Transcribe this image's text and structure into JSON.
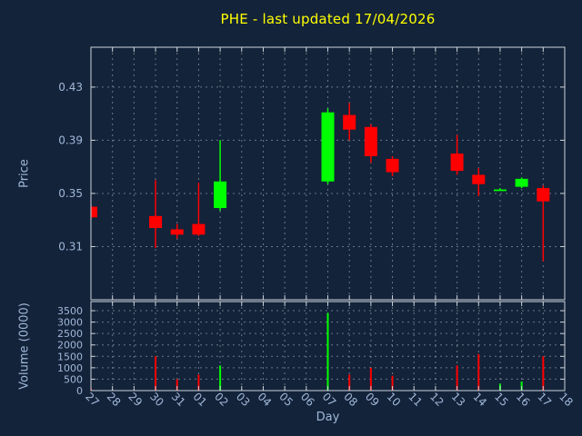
{
  "chart_data": {
    "type": "candlestick",
    "title": "PHE - last updated 17/04/2026",
    "xlabel": "Day",
    "x_categories": [
      "27",
      "28",
      "29",
      "30",
      "31",
      "01",
      "02",
      "03",
      "04",
      "05",
      "06",
      "07",
      "08",
      "09",
      "10",
      "11",
      "12",
      "13",
      "14",
      "15",
      "16",
      "17",
      "18"
    ],
    "grid": true,
    "legend": "none",
    "price_panel": {
      "ylabel": "Price",
      "ylim": [
        0.27,
        0.46
      ],
      "yticks": [
        0.31,
        0.35,
        0.39,
        0.43
      ]
    },
    "volume_panel": {
      "ylabel": "Volume (0000)",
      "ylim": [
        0,
        3900
      ],
      "yticks": [
        0,
        500,
        1000,
        1500,
        2000,
        2500,
        3000,
        3500
      ]
    },
    "colors": {
      "background": "#13233a",
      "up": "#00ff00",
      "down": "#ff0000",
      "title": "#ffff00",
      "axis_text": "#a0b8d8",
      "border": "#ccd4dc",
      "grid": "#ffffff"
    },
    "candles": [
      {
        "day": "27",
        "open": 0.34,
        "high": 0.341,
        "low": 0.331,
        "close": 0.332,
        "volume": 100
      },
      {
        "day": "30",
        "open": 0.333,
        "high": 0.36,
        "low": 0.309,
        "close": 0.324,
        "volume": 1500
      },
      {
        "day": "31",
        "open": 0.323,
        "high": 0.327,
        "low": 0.316,
        "close": 0.319,
        "volume": 500
      },
      {
        "day": "01",
        "open": 0.327,
        "high": 0.358,
        "low": 0.318,
        "close": 0.319,
        "volume": 700
      },
      {
        "day": "02",
        "open": 0.339,
        "high": 0.39,
        "low": 0.337,
        "close": 0.359,
        "volume": 1100
      },
      {
        "day": "07",
        "open": 0.359,
        "high": 0.414,
        "low": 0.357,
        "close": 0.411,
        "volume": 3400
      },
      {
        "day": "08",
        "open": 0.409,
        "high": 0.418,
        "low": 0.39,
        "close": 0.398,
        "volume": 700
      },
      {
        "day": "09",
        "open": 0.4,
        "high": 0.402,
        "low": 0.373,
        "close": 0.378,
        "volume": 1000
      },
      {
        "day": "10",
        "open": 0.376,
        "high": 0.378,
        "low": 0.363,
        "close": 0.366,
        "volume": 650
      },
      {
        "day": "13",
        "open": 0.38,
        "high": 0.394,
        "low": 0.364,
        "close": 0.367,
        "volume": 1100
      },
      {
        "day": "14",
        "open": 0.364,
        "high": 0.369,
        "low": 0.348,
        "close": 0.357,
        "volume": 1600
      },
      {
        "day": "15",
        "open": 0.353,
        "high": 0.354,
        "low": 0.352,
        "close": 0.353,
        "volume": 300
      },
      {
        "day": "16",
        "open": 0.355,
        "high": 0.362,
        "low": 0.354,
        "close": 0.361,
        "volume": 400
      },
      {
        "day": "17",
        "open": 0.354,
        "high": 0.356,
        "low": 0.299,
        "close": 0.344,
        "volume": 1500
      }
    ]
  }
}
